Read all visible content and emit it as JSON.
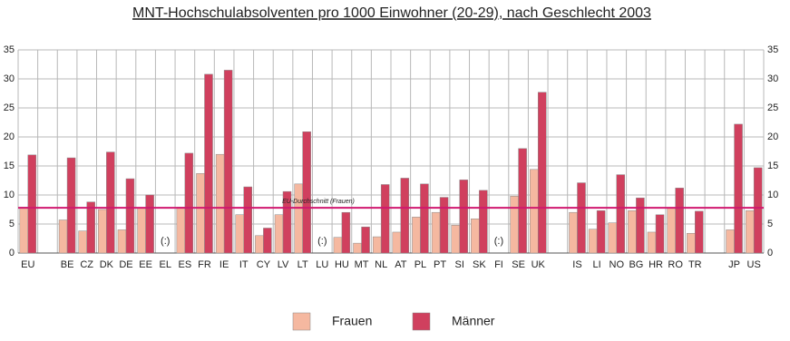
{
  "chart_data": {
    "type": "bar",
    "title": "MNT-Hochschulabsolventen pro 1000 Einwohner (20-29), nach Geschlecht 2003",
    "categories": [
      "EU",
      null,
      "BE",
      "CZ",
      "DK",
      "DE",
      "EE",
      "EL",
      "ES",
      "FR",
      "IE",
      "IT",
      "CY",
      "LV",
      "LT",
      "LU",
      "HU",
      "MT",
      "NL",
      "AT",
      "PL",
      "PT",
      "SI",
      "SK",
      "FI",
      "SE",
      "UK",
      null,
      "IS",
      "LI",
      "NO",
      "BG",
      "HR",
      "RO",
      "TR",
      null,
      "JP",
      "US"
    ],
    "series": [
      {
        "name": "Frauen",
        "color": "#f5b8a0",
        "values": [
          7.9,
          null,
          5.7,
          3.8,
          7.5,
          4.0,
          7.8,
          null,
          7.9,
          13.7,
          17.0,
          6.6,
          3.0,
          6.6,
          11.9,
          null,
          2.7,
          1.7,
          2.8,
          3.6,
          6.2,
          7.0,
          4.8,
          5.9,
          null,
          9.8,
          14.4,
          null,
          7.0,
          4.1,
          5.2,
          7.3,
          3.6,
          7.7,
          3.4,
          null,
          4.0,
          7.3
        ]
      },
      {
        "name": "Männer",
        "color": "#d0405e",
        "values": [
          16.9,
          null,
          16.4,
          8.8,
          17.4,
          12.8,
          10.0,
          null,
          17.2,
          30.8,
          31.5,
          11.4,
          4.3,
          10.6,
          20.9,
          null,
          7.0,
          4.5,
          11.8,
          12.9,
          11.9,
          9.6,
          12.6,
          10.8,
          null,
          18.0,
          27.7,
          null,
          12.1,
          7.3,
          13.5,
          9.5,
          6.6,
          11.2,
          7.2,
          null,
          22.2,
          14.7
        ]
      }
    ],
    "missing_label": "(:)",
    "reference_line": {
      "value": 7.8,
      "label": "EU-Durchschnitt (Frauen)",
      "color": "#d0186f"
    },
    "ylim": [
      0,
      35
    ],
    "yticks": [
      0,
      5,
      10,
      15,
      20,
      25,
      30,
      35
    ],
    "grid": true
  }
}
